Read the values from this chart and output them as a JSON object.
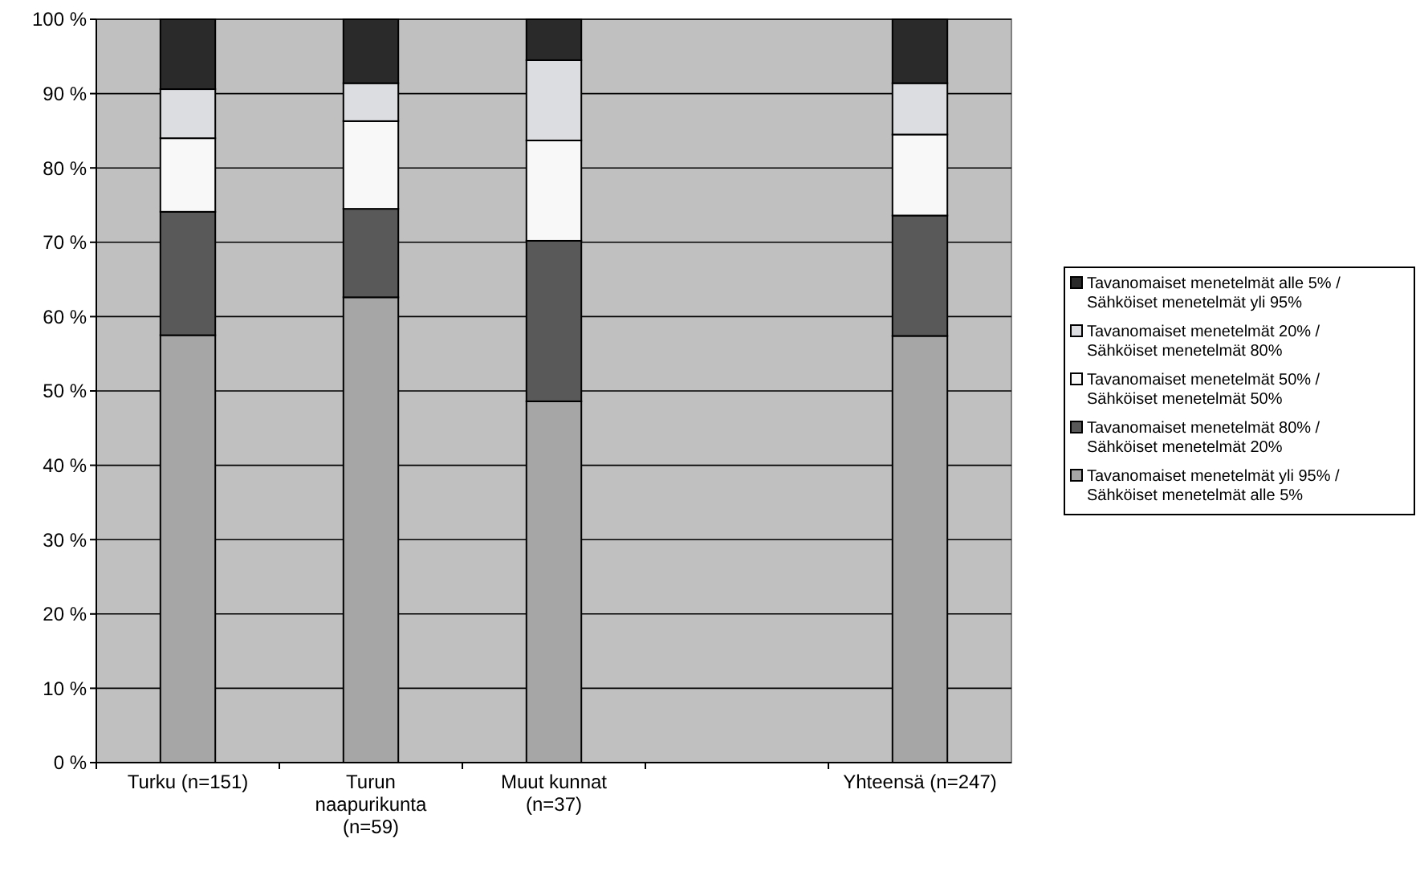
{
  "chart_data": {
    "type": "bar",
    "stacked": true,
    "categories": [
      "Turku (n=151)",
      "Turun naapurikunta (n=59)",
      "Muut kunnat (n=37)",
      null,
      "Yhteensä (n=247)"
    ],
    "series": [
      {
        "name": "Tavanomaiset menetelmät yli 95% / Sähköiset menetelmät alle 5%",
        "color": "#a6a6a6",
        "values": [
          57.5,
          62.6,
          48.6,
          null,
          57.4
        ]
      },
      {
        "name": "Tavanomaiset menetelmät 80% / Sähköiset menetelmät 20%",
        "color": "#595959",
        "values": [
          16.6,
          11.9,
          21.6,
          null,
          16.2
        ]
      },
      {
        "name": "Tavanomaiset menetelmät 50% / Sähköiset menetelmät 50%",
        "color": "#f8f8f8",
        "values": [
          9.9,
          11.8,
          13.5,
          null,
          10.9
        ]
      },
      {
        "name": "Tavanomaiset menetelmät 20% / Sähköiset menetelmät 80%",
        "color": "#dcdde0",
        "values": [
          6.6,
          5.1,
          10.8,
          null,
          6.9
        ]
      },
      {
        "name": "Tavanomaiset menetelmät alle 5% / Sähköiset menetelmät yli 95%",
        "color": "#2a2a2a",
        "values": [
          9.4,
          8.6,
          5.5,
          null,
          8.6
        ]
      }
    ],
    "ylim": [
      0,
      100
    ],
    "yticks": [
      {
        "value": 0,
        "label": "0 %"
      },
      {
        "value": 10,
        "label": "10 %"
      },
      {
        "value": 20,
        "label": "20 %"
      },
      {
        "value": 30,
        "label": "30 %"
      },
      {
        "value": 40,
        "label": "40 %"
      },
      {
        "value": 50,
        "label": "50 %"
      },
      {
        "value": 60,
        "label": "60 %"
      },
      {
        "value": 70,
        "label": "70 %"
      },
      {
        "value": 80,
        "label": "80 %"
      },
      {
        "value": 90,
        "label": "90 %"
      },
      {
        "value": 100,
        "label": "100 %"
      }
    ],
    "grid": "y",
    "legend": "right"
  }
}
